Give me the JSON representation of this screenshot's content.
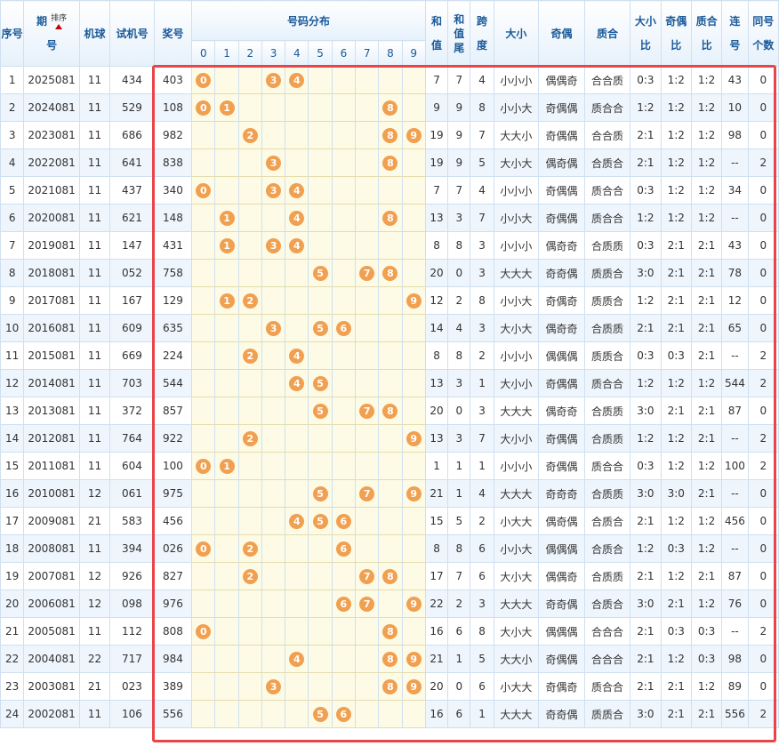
{
  "headers": {
    "seq": "序号",
    "issue_top": "期",
    "issue_bottom": "号",
    "sort_label": "排序",
    "machine": "机球",
    "trial": "试机号",
    "prize": "奖号",
    "dist": "号码分布",
    "digits": [
      "0",
      "1",
      "2",
      "3",
      "4",
      "5",
      "6",
      "7",
      "8",
      "9"
    ],
    "sum_top": "和",
    "sum_bottom": "值",
    "sumtail_top": "和",
    "sumtail_mid": "值",
    "sumtail_bottom": "尾",
    "span_top": "跨",
    "span_bottom": "度",
    "size": "大小",
    "parity": "奇偶",
    "prime": "质合",
    "size_ratio_top": "大小",
    "size_ratio_bottom": "比",
    "parity_ratio_top": "奇偶",
    "parity_ratio_bottom": "比",
    "prime_ratio_top": "质合",
    "prime_ratio_bottom": "比",
    "consec_top": "连",
    "consec_bottom": "号",
    "same_top": "同号",
    "same_bottom": "个数"
  },
  "rows": [
    {
      "seq": "1",
      "issue": "2025081",
      "machine": "11",
      "trial": "434",
      "prize": "403",
      "sum": "7",
      "tail": "7",
      "span": "4",
      "size": "小小小",
      "parity": "偶偶奇",
      "prime": "合合质",
      "size_ratio": "0:3",
      "parity_ratio": "1:2",
      "prime_ratio": "1:2",
      "consec": "43",
      "same": "0"
    },
    {
      "seq": "2",
      "issue": "2024081",
      "machine": "11",
      "trial": "529",
      "prize": "108",
      "sum": "9",
      "tail": "9",
      "span": "8",
      "size": "小小大",
      "parity": "奇偶偶",
      "prime": "质合合",
      "size_ratio": "1:2",
      "parity_ratio": "1:2",
      "prime_ratio": "1:2",
      "consec": "10",
      "same": "0"
    },
    {
      "seq": "3",
      "issue": "2023081",
      "machine": "11",
      "trial": "686",
      "prize": "982",
      "sum": "19",
      "tail": "9",
      "span": "7",
      "size": "大大小",
      "parity": "奇偶偶",
      "prime": "合合质",
      "size_ratio": "2:1",
      "parity_ratio": "1:2",
      "prime_ratio": "1:2",
      "consec": "98",
      "same": "0"
    },
    {
      "seq": "4",
      "issue": "2022081",
      "machine": "11",
      "trial": "641",
      "prize": "838",
      "sum": "19",
      "tail": "9",
      "span": "5",
      "size": "大小大",
      "parity": "偶奇偶",
      "prime": "合质合",
      "size_ratio": "2:1",
      "parity_ratio": "1:2",
      "prime_ratio": "1:2",
      "consec": "--",
      "same": "2"
    },
    {
      "seq": "5",
      "issue": "2021081",
      "machine": "11",
      "trial": "437",
      "prize": "340",
      "sum": "7",
      "tail": "7",
      "span": "4",
      "size": "小小小",
      "parity": "奇偶偶",
      "prime": "质合合",
      "size_ratio": "0:3",
      "parity_ratio": "1:2",
      "prime_ratio": "1:2",
      "consec": "34",
      "same": "0"
    },
    {
      "seq": "6",
      "issue": "2020081",
      "machine": "11",
      "trial": "621",
      "prize": "148",
      "sum": "13",
      "tail": "3",
      "span": "7",
      "size": "小小大",
      "parity": "奇偶偶",
      "prime": "质合合",
      "size_ratio": "1:2",
      "parity_ratio": "1:2",
      "prime_ratio": "1:2",
      "consec": "--",
      "same": "0"
    },
    {
      "seq": "7",
      "issue": "2019081",
      "machine": "11",
      "trial": "147",
      "prize": "431",
      "sum": "8",
      "tail": "8",
      "span": "3",
      "size": "小小小",
      "parity": "偶奇奇",
      "prime": "合质质",
      "size_ratio": "0:3",
      "parity_ratio": "2:1",
      "prime_ratio": "2:1",
      "consec": "43",
      "same": "0"
    },
    {
      "seq": "8",
      "issue": "2018081",
      "machine": "11",
      "trial": "052",
      "prize": "758",
      "sum": "20",
      "tail": "0",
      "span": "3",
      "size": "大大大",
      "parity": "奇奇偶",
      "prime": "质质合",
      "size_ratio": "3:0",
      "parity_ratio": "2:1",
      "prime_ratio": "2:1",
      "consec": "78",
      "same": "0"
    },
    {
      "seq": "9",
      "issue": "2017081",
      "machine": "11",
      "trial": "167",
      "prize": "129",
      "sum": "12",
      "tail": "2",
      "span": "8",
      "size": "小小大",
      "parity": "奇偶奇",
      "prime": "质质合",
      "size_ratio": "1:2",
      "parity_ratio": "2:1",
      "prime_ratio": "2:1",
      "consec": "12",
      "same": "0"
    },
    {
      "seq": "10",
      "issue": "2016081",
      "machine": "11",
      "trial": "609",
      "prize": "635",
      "sum": "14",
      "tail": "4",
      "span": "3",
      "size": "大小大",
      "parity": "偶奇奇",
      "prime": "合质质",
      "size_ratio": "2:1",
      "parity_ratio": "2:1",
      "prime_ratio": "2:1",
      "consec": "65",
      "same": "0"
    },
    {
      "seq": "11",
      "issue": "2015081",
      "machine": "11",
      "trial": "669",
      "prize": "224",
      "sum": "8",
      "tail": "8",
      "span": "2",
      "size": "小小小",
      "parity": "偶偶偶",
      "prime": "质质合",
      "size_ratio": "0:3",
      "parity_ratio": "0:3",
      "prime_ratio": "2:1",
      "consec": "--",
      "same": "2"
    },
    {
      "seq": "12",
      "issue": "2014081",
      "machine": "11",
      "trial": "703",
      "prize": "544",
      "sum": "13",
      "tail": "3",
      "span": "1",
      "size": "大小小",
      "parity": "奇偶偶",
      "prime": "质合合",
      "size_ratio": "1:2",
      "parity_ratio": "1:2",
      "prime_ratio": "1:2",
      "consec": "544",
      "same": "2"
    },
    {
      "seq": "13",
      "issue": "2013081",
      "machine": "11",
      "trial": "372",
      "prize": "857",
      "sum": "20",
      "tail": "0",
      "span": "3",
      "size": "大大大",
      "parity": "偶奇奇",
      "prime": "合质质",
      "size_ratio": "3:0",
      "parity_ratio": "2:1",
      "prime_ratio": "2:1",
      "consec": "87",
      "same": "0"
    },
    {
      "seq": "14",
      "issue": "2012081",
      "machine": "11",
      "trial": "764",
      "prize": "922",
      "sum": "13",
      "tail": "3",
      "span": "7",
      "size": "大小小",
      "parity": "奇偶偶",
      "prime": "合质质",
      "size_ratio": "1:2",
      "parity_ratio": "1:2",
      "prime_ratio": "2:1",
      "consec": "--",
      "same": "2"
    },
    {
      "seq": "15",
      "issue": "2011081",
      "machine": "11",
      "trial": "604",
      "prize": "100",
      "sum": "1",
      "tail": "1",
      "span": "1",
      "size": "小小小",
      "parity": "奇偶偶",
      "prime": "质合合",
      "size_ratio": "0:3",
      "parity_ratio": "1:2",
      "prime_ratio": "1:2",
      "consec": "100",
      "same": "2"
    },
    {
      "seq": "16",
      "issue": "2010081",
      "machine": "12",
      "trial": "061",
      "prize": "975",
      "sum": "21",
      "tail": "1",
      "span": "4",
      "size": "大大大",
      "parity": "奇奇奇",
      "prime": "合质质",
      "size_ratio": "3:0",
      "parity_ratio": "3:0",
      "prime_ratio": "2:1",
      "consec": "--",
      "same": "0"
    },
    {
      "seq": "17",
      "issue": "2009081",
      "machine": "21",
      "trial": "583",
      "prize": "456",
      "sum": "15",
      "tail": "5",
      "span": "2",
      "size": "小大大",
      "parity": "偶奇偶",
      "prime": "合质合",
      "size_ratio": "2:1",
      "parity_ratio": "1:2",
      "prime_ratio": "1:2",
      "consec": "456",
      "same": "0"
    },
    {
      "seq": "18",
      "issue": "2008081",
      "machine": "11",
      "trial": "394",
      "prize": "026",
      "sum": "8",
      "tail": "8",
      "span": "6",
      "size": "小小大",
      "parity": "偶偶偶",
      "prime": "合质合",
      "size_ratio": "1:2",
      "parity_ratio": "0:3",
      "prime_ratio": "1:2",
      "consec": "--",
      "same": "0"
    },
    {
      "seq": "19",
      "issue": "2007081",
      "machine": "12",
      "trial": "926",
      "prize": "827",
      "sum": "17",
      "tail": "7",
      "span": "6",
      "size": "大小大",
      "parity": "偶偶奇",
      "prime": "合质质",
      "size_ratio": "2:1",
      "parity_ratio": "1:2",
      "prime_ratio": "2:1",
      "consec": "87",
      "same": "0"
    },
    {
      "seq": "20",
      "issue": "2006081",
      "machine": "12",
      "trial": "098",
      "prize": "976",
      "sum": "22",
      "tail": "2",
      "span": "3",
      "size": "大大大",
      "parity": "奇奇偶",
      "prime": "合质合",
      "size_ratio": "3:0",
      "parity_ratio": "2:1",
      "prime_ratio": "1:2",
      "consec": "76",
      "same": "0"
    },
    {
      "seq": "21",
      "issue": "2005081",
      "machine": "11",
      "trial": "112",
      "prize": "808",
      "sum": "16",
      "tail": "6",
      "span": "8",
      "size": "大小大",
      "parity": "偶偶偶",
      "prime": "合合合",
      "size_ratio": "2:1",
      "parity_ratio": "0:3",
      "prime_ratio": "0:3",
      "consec": "--",
      "same": "2"
    },
    {
      "seq": "22",
      "issue": "2004081",
      "machine": "22",
      "trial": "717",
      "prize": "984",
      "sum": "21",
      "tail": "1",
      "span": "5",
      "size": "大大小",
      "parity": "奇偶偶",
      "prime": "合合合",
      "size_ratio": "2:1",
      "parity_ratio": "1:2",
      "prime_ratio": "0:3",
      "consec": "98",
      "same": "0"
    },
    {
      "seq": "23",
      "issue": "2003081",
      "machine": "21",
      "trial": "023",
      "prize": "389",
      "sum": "20",
      "tail": "0",
      "span": "6",
      "size": "小大大",
      "parity": "奇偶奇",
      "prime": "质合合",
      "size_ratio": "2:1",
      "parity_ratio": "2:1",
      "prime_ratio": "1:2",
      "consec": "89",
      "same": "0"
    },
    {
      "seq": "24",
      "issue": "2002081",
      "machine": "11",
      "trial": "106",
      "prize": "556",
      "sum": "16",
      "tail": "6",
      "span": "1",
      "size": "大大大",
      "parity": "奇奇偶",
      "prime": "质质合",
      "size_ratio": "3:0",
      "parity_ratio": "2:1",
      "prime_ratio": "2:1",
      "consec": "556",
      "same": "2"
    }
  ],
  "colors": {
    "ball": "#f0a050",
    "highlight": "#e8454a",
    "header_text": "#1a5a9a",
    "dist_bg": "#fdfbe6"
  }
}
